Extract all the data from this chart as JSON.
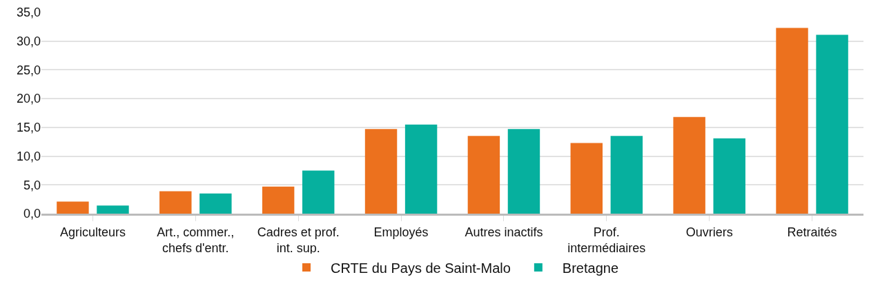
{
  "chart_data": {
    "type": "bar",
    "categories": [
      "Agriculteurs",
      "Art., commer.,\nchefs d'entr.",
      "Cadres et prof.\nint. sup.",
      "Employés",
      "Autres inactifs",
      "Prof.\nintermédiaires",
      "Ouvriers",
      "Retraités"
    ],
    "series": [
      {
        "name": "CRTE du Pays de Saint-Malo",
        "color": "#ec711e",
        "values": [
          2.1,
          3.9,
          4.7,
          14.7,
          13.5,
          12.3,
          16.8,
          32.3
        ]
      },
      {
        "name": "Bretagne",
        "color": "#06b09e",
        "values": [
          1.4,
          3.5,
          7.5,
          15.5,
          14.7,
          13.5,
          13.1,
          31.1
        ]
      }
    ],
    "ylim": [
      0,
      35
    ],
    "yticks": [
      {
        "value": 0,
        "label": "0,0"
      },
      {
        "value": 5,
        "label": "5,0"
      },
      {
        "value": 10,
        "label": "10,0"
      },
      {
        "value": 15,
        "label": "15,0"
      },
      {
        "value": 20,
        "label": "20,0"
      },
      {
        "value": 25,
        "label": "25,0"
      },
      {
        "value": 30,
        "label": "30,0"
      },
      {
        "value": 35,
        "label": "35,0"
      }
    ],
    "grid": "y",
    "legend": "bottom"
  }
}
